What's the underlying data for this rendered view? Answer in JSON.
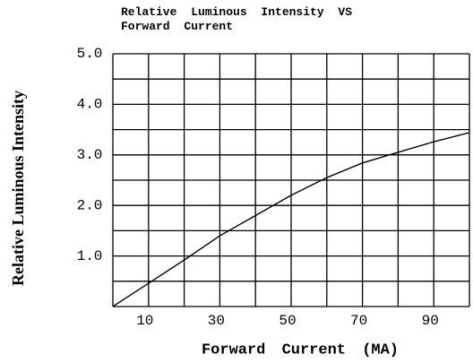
{
  "chart_data": {
    "type": "line",
    "title": "Relative Luminous Intensity VS Forward Current",
    "x_label": "Forward Current (MA)",
    "y_label": "Relative Luminous Intensity",
    "x": [
      0,
      10,
      20,
      30,
      40,
      50,
      60,
      70,
      80,
      90,
      100
    ],
    "series": [
      {
        "color": "#000000",
        "values": [
          0,
          0.46,
          0.92,
          1.4,
          1.8,
          2.2,
          2.55,
          2.84,
          3.05,
          3.26,
          3.44
        ]
      }
    ],
    "xlim": [
      0,
      100
    ],
    "ylim": [
      0,
      5
    ],
    "xticks": [
      10,
      30,
      50,
      70,
      90
    ],
    "yticks": [
      {
        "value": 1,
        "label": "1.0"
      },
      {
        "value": 2,
        "label": "2.0"
      },
      {
        "value": 3,
        "label": "3.0"
      },
      {
        "value": 4,
        "label": "4.0"
      },
      {
        "value": 5,
        "label": "5.0"
      }
    ],
    "xgrid": [
      0,
      10,
      20,
      30,
      40,
      50,
      60,
      70,
      80,
      90,
      100
    ],
    "ygrid": [
      0,
      0.5,
      1,
      1.5,
      2,
      2.5,
      3,
      3.5,
      4,
      4.5,
      5
    ],
    "grid": true
  }
}
